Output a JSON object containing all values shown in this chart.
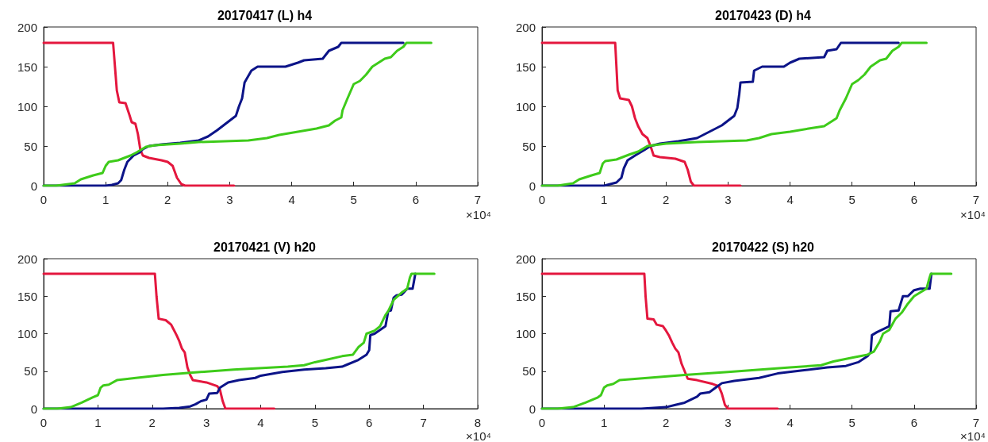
{
  "chart_data": [
    {
      "type": "line",
      "title": "20170417 (L) h4",
      "marker": "none",
      "line_style": "solid",
      "grid": false,
      "annotations": [
        "×10⁴"
      ],
      "xlim": [
        0,
        7
      ],
      "xticks": [
        0,
        1,
        2,
        3,
        4,
        5,
        6,
        7
      ],
      "ylim": [
        0,
        200
      ],
      "yticks": [
        0,
        50,
        100,
        150,
        200
      ],
      "series": [
        {
          "color": "#e4173e",
          "x": [
            0,
            1.12,
            1.15,
            1.18,
            1.22,
            1.32,
            1.38,
            1.42,
            1.48,
            1.52,
            1.56,
            1.6,
            1.7,
            1.9,
            2.0,
            2.08,
            2.15,
            2.22,
            2.28,
            3.07
          ],
          "values": [
            180,
            180,
            150,
            120,
            105,
            104,
            90,
            80,
            78,
            65,
            45,
            38,
            35,
            32,
            30,
            25,
            10,
            2,
            0,
            0
          ]
        },
        {
          "color": "#0c1488",
          "x": [
            0,
            0.3,
            1.0,
            1.1,
            1.2,
            1.25,
            1.3,
            1.35,
            1.45,
            1.55,
            1.6,
            1.7,
            1.9,
            2.2,
            2.5,
            2.65,
            2.8,
            2.9,
            3.0,
            3.1,
            3.15,
            3.2,
            3.24,
            3.35,
            3.45,
            3.9,
            4.1,
            4.2,
            4.5,
            4.6,
            4.75,
            4.8,
            5.8
          ],
          "values": [
            0,
            0,
            0,
            1,
            3,
            7,
            20,
            30,
            38,
            42,
            46,
            50,
            52,
            54,
            57,
            62,
            70,
            76,
            82,
            88,
            100,
            110,
            130,
            145,
            150,
            150,
            155,
            158,
            160,
            170,
            175,
            180,
            180
          ]
        },
        {
          "color": "#3ecb1a",
          "x": [
            0,
            0.2,
            0.5,
            0.6,
            0.8,
            0.95,
            1.0,
            1.05,
            1.2,
            1.3,
            1.4,
            1.5,
            1.65,
            1.8,
            2.2,
            2.5,
            3.3,
            3.6,
            3.8,
            4.1,
            4.4,
            4.6,
            4.7,
            4.8,
            4.82,
            4.9,
            5.0,
            5.1,
            5.2,
            5.3,
            5.4,
            5.5,
            5.6,
            5.7,
            5.8,
            5.85,
            6.25
          ],
          "values": [
            0,
            0,
            3,
            8,
            13,
            16,
            25,
            30,
            32,
            35,
            38,
            42,
            49,
            51,
            53,
            55,
            57,
            60,
            64,
            68,
            72,
            76,
            82,
            86,
            95,
            110,
            128,
            132,
            140,
            150,
            155,
            160,
            162,
            170,
            175,
            180,
            180
          ]
        }
      ]
    },
    {
      "type": "line",
      "title": "20170423 (D) h4",
      "marker": "none",
      "line_style": "solid",
      "grid": false,
      "annotations": [
        "×10⁴"
      ],
      "xlim": [
        0,
        7
      ],
      "xticks": [
        0,
        1,
        2,
        3,
        4,
        5,
        6,
        7
      ],
      "ylim": [
        0,
        200
      ],
      "yticks": [
        0,
        50,
        100,
        150,
        200
      ],
      "series": [
        {
          "color": "#e4173e",
          "x": [
            0,
            1.18,
            1.2,
            1.22,
            1.26,
            1.4,
            1.45,
            1.5,
            1.55,
            1.62,
            1.7,
            1.75,
            1.8,
            1.9,
            2.15,
            2.3,
            2.35,
            2.4,
            2.45,
            3.2
          ],
          "values": [
            180,
            180,
            150,
            120,
            110,
            108,
            100,
            85,
            75,
            65,
            60,
            50,
            38,
            36,
            34,
            30,
            20,
            5,
            0,
            0
          ]
        },
        {
          "color": "#0c1488",
          "x": [
            0,
            0.3,
            1.0,
            1.1,
            1.2,
            1.28,
            1.32,
            1.38,
            1.5,
            1.65,
            1.75,
            1.9,
            2.2,
            2.5,
            2.65,
            2.8,
            2.9,
            3.0,
            3.1,
            3.15,
            3.18,
            3.2,
            3.4,
            3.42,
            3.55,
            3.9,
            4.0,
            4.15,
            4.55,
            4.6,
            4.75,
            4.82,
            5.75
          ],
          "values": [
            0,
            0,
            0,
            2,
            4,
            10,
            22,
            32,
            38,
            45,
            50,
            53,
            56,
            60,
            66,
            72,
            76,
            82,
            88,
            98,
            115,
            130,
            131,
            145,
            150,
            150,
            155,
            160,
            162,
            170,
            172,
            180,
            180
          ]
        },
        {
          "color": "#3ecb1a",
          "x": [
            0,
            0.25,
            0.5,
            0.6,
            0.8,
            0.93,
            0.98,
            1.02,
            1.2,
            1.4,
            1.55,
            1.7,
            2.0,
            2.5,
            3.3,
            3.5,
            3.7,
            4.0,
            4.3,
            4.55,
            4.65,
            4.75,
            4.8,
            4.9,
            5.0,
            5.1,
            5.2,
            5.3,
            5.45,
            5.55,
            5.65,
            5.75,
            5.8,
            6.2
          ],
          "values": [
            0,
            0,
            3,
            8,
            13,
            16,
            28,
            31,
            33,
            39,
            43,
            50,
            53,
            55,
            57,
            60,
            65,
            68,
            72,
            75,
            80,
            85,
            95,
            110,
            128,
            133,
            140,
            150,
            158,
            160,
            170,
            175,
            180,
            180
          ]
        }
      ]
    },
    {
      "type": "line",
      "title": "20170421 (V) h20",
      "marker": "none",
      "line_style": "solid",
      "grid": false,
      "annotations": [
        "×10⁴"
      ],
      "xlim": [
        0,
        8
      ],
      "xticks": [
        0,
        1,
        2,
        3,
        4,
        5,
        6,
        7,
        8
      ],
      "ylim": [
        0,
        200
      ],
      "yticks": [
        0,
        50,
        100,
        150,
        200
      ],
      "series": [
        {
          "color": "#e4173e",
          "x": [
            0,
            2.05,
            2.08,
            2.12,
            2.25,
            2.35,
            2.4,
            2.45,
            2.5,
            2.55,
            2.6,
            2.65,
            2.7,
            2.75,
            3.0,
            3.2,
            3.25,
            3.3,
            3.35,
            4.25
          ],
          "values": [
            180,
            180,
            150,
            120,
            118,
            112,
            105,
            98,
            90,
            80,
            75,
            55,
            45,
            38,
            35,
            30,
            25,
            10,
            0,
            0
          ]
        },
        {
          "color": "#0c1488",
          "x": [
            0,
            2.2,
            2.5,
            2.7,
            2.8,
            2.9,
            3.0,
            3.05,
            3.2,
            3.25,
            3.4,
            3.6,
            3.9,
            4.0,
            4.4,
            4.8,
            5.2,
            5.5,
            5.6,
            5.8,
            5.95,
            6.0,
            6.02,
            6.1,
            6.2,
            6.3,
            6.35,
            6.4,
            6.45,
            6.5,
            6.6,
            6.7,
            6.8,
            6.85
          ],
          "values": [
            0,
            0,
            1,
            3,
            6,
            10,
            12,
            20,
            21,
            28,
            35,
            38,
            41,
            44,
            49,
            52,
            54,
            56,
            59,
            65,
            72,
            78,
            98,
            100,
            105,
            110,
            130,
            131,
            148,
            151,
            152,
            160,
            160,
            180
          ]
        },
        {
          "color": "#3ecb1a",
          "x": [
            0,
            0.25,
            0.5,
            0.7,
            0.9,
            1.0,
            1.05,
            1.1,
            1.2,
            1.35,
            1.7,
            2.2,
            2.7,
            3.5,
            4.5,
            4.8,
            5.0,
            5.2,
            5.5,
            5.7,
            5.8,
            5.9,
            5.95,
            6.1,
            6.2,
            6.3,
            6.35,
            6.45,
            6.6,
            6.7,
            6.75,
            6.78,
            7.2
          ],
          "values": [
            0,
            0,
            2,
            8,
            15,
            18,
            28,
            31,
            32,
            38,
            41,
            45,
            48,
            52,
            56,
            58,
            62,
            65,
            70,
            72,
            82,
            88,
            100,
            104,
            110,
            125,
            130,
            145,
            155,
            160,
            175,
            180,
            180
          ]
        }
      ]
    },
    {
      "type": "line",
      "title": "20170422 (S) h20",
      "marker": "none",
      "line_style": "solid",
      "grid": false,
      "annotations": [
        "×10⁴"
      ],
      "xlim": [
        0,
        7
      ],
      "xticks": [
        0,
        1,
        2,
        3,
        4,
        5,
        6,
        7
      ],
      "ylim": [
        0,
        200
      ],
      "yticks": [
        0,
        50,
        100,
        150,
        200
      ],
      "series": [
        {
          "color": "#e4173e",
          "x": [
            0,
            1.65,
            1.67,
            1.7,
            1.8,
            1.85,
            1.95,
            2.0,
            2.05,
            2.1,
            2.15,
            2.2,
            2.25,
            2.3,
            2.35,
            2.5,
            2.75,
            2.85,
            2.9,
            2.95,
            3.0,
            3.8
          ],
          "values": [
            180,
            180,
            150,
            120,
            119,
            112,
            110,
            104,
            97,
            88,
            80,
            75,
            60,
            50,
            40,
            38,
            33,
            30,
            20,
            5,
            0,
            0
          ]
        },
        {
          "color": "#0c1488",
          "x": [
            0,
            1.6,
            2.0,
            2.15,
            2.3,
            2.4,
            2.5,
            2.55,
            2.7,
            2.8,
            2.9,
            3.1,
            3.5,
            3.8,
            4.2,
            4.6,
            4.9,
            5.1,
            5.25,
            5.3,
            5.32,
            5.4,
            5.6,
            5.62,
            5.75,
            5.82,
            5.9,
            6.0,
            6.1,
            6.25,
            6.28
          ],
          "values": [
            0,
            0,
            2,
            5,
            8,
            12,
            16,
            20,
            22,
            28,
            34,
            37,
            41,
            47,
            51,
            55,
            57,
            62,
            70,
            75,
            98,
            102,
            110,
            130,
            131,
            150,
            150,
            158,
            160,
            160,
            180
          ]
        },
        {
          "color": "#3ecb1a",
          "x": [
            0,
            0.25,
            0.5,
            0.7,
            0.9,
            0.95,
            1.0,
            1.05,
            1.15,
            1.25,
            1.7,
            2.3,
            3.0,
            4.0,
            4.5,
            4.7,
            5.0,
            5.25,
            5.35,
            5.45,
            5.5,
            5.6,
            5.7,
            5.8,
            5.9,
            6.0,
            6.1,
            6.2,
            6.25,
            6.27,
            6.6
          ],
          "values": [
            0,
            0,
            2,
            8,
            15,
            18,
            28,
            31,
            33,
            38,
            41,
            45,
            49,
            55,
            58,
            63,
            68,
            72,
            76,
            90,
            100,
            105,
            120,
            128,
            140,
            150,
            155,
            160,
            175,
            180,
            180
          ]
        }
      ]
    }
  ]
}
